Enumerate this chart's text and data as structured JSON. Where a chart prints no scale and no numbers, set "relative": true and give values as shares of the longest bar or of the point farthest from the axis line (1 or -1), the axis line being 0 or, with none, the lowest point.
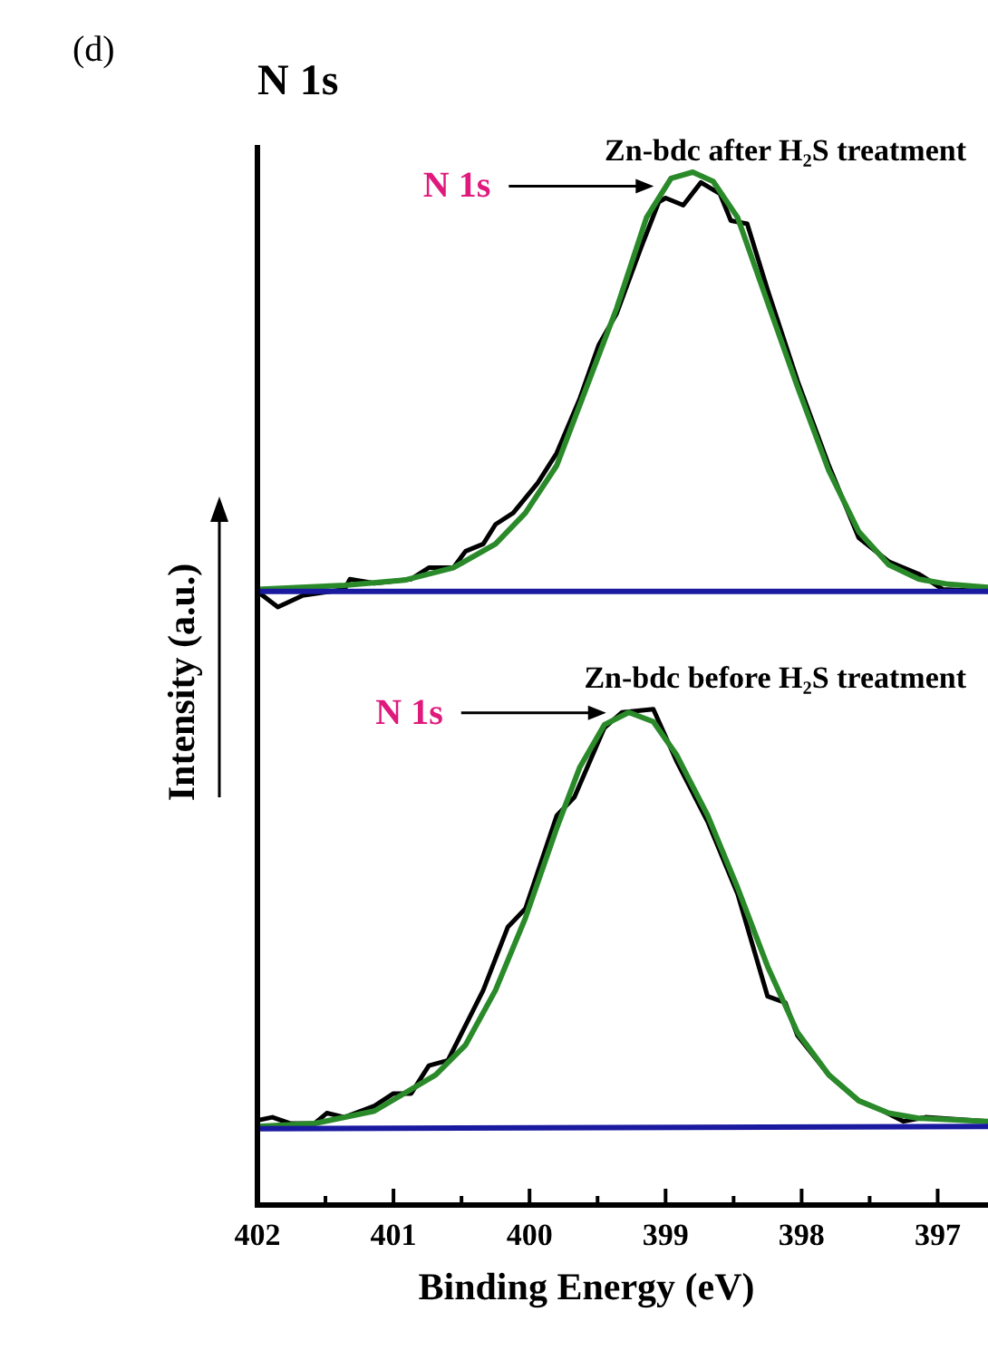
{
  "chart_data": {
    "type": "line",
    "title": "N 1s",
    "xlabel": "Binding Energy (eV)",
    "ylabel": "Intensity (a.u.)",
    "relative": true,
    "xlim": [
      402,
      396.63
    ],
    "xticks": [
      402,
      {
        "value": 401.5,
        "label": null
      },
      401,
      {
        "value": 400.5,
        "label": null
      },
      400,
      {
        "value": 399.5,
        "label": null
      },
      399,
      {
        "value": 398.5,
        "label": null
      },
      398,
      {
        "value": 397.5,
        "label": null
      },
      397
    ],
    "tick_labels": "x",
    "grid": false,
    "legend": false,
    "marker": "none",
    "line_style": "solid",
    "annotations": [
      "(d)",
      "N 1s",
      "N 1s"
    ],
    "series": [
      {
        "name": "Zn-bdc after H₂S treatment",
        "color": "#000000",
        "x": [
          402.0,
          401.85,
          401.67,
          401.36,
          401.32,
          401.14,
          400.87,
          400.74,
          400.56,
          400.47,
          400.34,
          400.25,
          400.12,
          399.94,
          399.8,
          399.63,
          399.49,
          399.36,
          399.18,
          399.05,
          399.0,
          398.87,
          398.74,
          398.6,
          398.52,
          398.4,
          398.25,
          398.03,
          397.8,
          397.58,
          397.36,
          397.14,
          396.96,
          396.63
        ],
        "values": [
          0.594,
          0.579,
          0.59,
          0.596,
          0.606,
          0.602,
          0.606,
          0.617,
          0.617,
          0.633,
          0.64,
          0.659,
          0.67,
          0.699,
          0.728,
          0.781,
          0.833,
          0.863,
          0.927,
          0.971,
          0.975,
          0.968,
          0.99,
          0.979,
          0.953,
          0.95,
          0.886,
          0.798,
          0.716,
          0.646,
          0.623,
          0.611,
          0.596,
          0.594
        ]
      },
      {
        "color": "#2a8a2a",
        "x": [
          402.0,
          401.36,
          400.92,
          400.56,
          400.25,
          400.03,
          399.8,
          399.58,
          399.36,
          399.14,
          398.96,
          398.8,
          398.65,
          398.47,
          398.25,
          398.03,
          397.8,
          397.58,
          397.36,
          397.14,
          396.92,
          396.63
        ],
        "values": [
          0.596,
          0.6,
          0.605,
          0.617,
          0.64,
          0.67,
          0.716,
          0.792,
          0.868,
          0.956,
          0.994,
          1.0,
          0.991,
          0.956,
          0.874,
          0.792,
          0.711,
          0.652,
          0.62,
          0.606,
          0.601,
          0.598
        ]
      },
      {
        "color": "#1a1aa0",
        "x": [
          402.0,
          396.63
        ],
        "values": [
          0.594,
          0.594
        ]
      },
      {
        "name": "Zn-bdc before H₂S treatment",
        "color": "#000000",
        "x": [
          402.0,
          401.89,
          401.76,
          401.58,
          401.49,
          401.36,
          401.14,
          401.0,
          400.87,
          400.74,
          400.6,
          400.34,
          400.16,
          400.03,
          399.8,
          399.67,
          399.45,
          399.32,
          399.09,
          398.92,
          398.69,
          398.47,
          398.25,
          398.12,
          398.03,
          397.8,
          397.58,
          397.4,
          397.25,
          397.09,
          396.63
        ],
        "values": [
          0.082,
          0.085,
          0.079,
          0.079,
          0.089,
          0.085,
          0.096,
          0.108,
          0.108,
          0.135,
          0.14,
          0.208,
          0.269,
          0.287,
          0.377,
          0.395,
          0.462,
          0.477,
          0.48,
          0.43,
          0.371,
          0.301,
          0.202,
          0.196,
          0.164,
          0.126,
          0.101,
          0.091,
          0.081,
          0.085,
          0.081
        ]
      },
      {
        "color": "#2a8a2a",
        "x": [
          402.0,
          401.58,
          401.14,
          400.69,
          400.47,
          400.25,
          400.03,
          399.8,
          399.63,
          399.45,
          399.27,
          399.09,
          398.92,
          398.69,
          398.47,
          398.25,
          398.03,
          397.8,
          397.58,
          397.36,
          397.14,
          396.63
        ],
        "values": [
          0.076,
          0.079,
          0.091,
          0.126,
          0.155,
          0.208,
          0.278,
          0.365,
          0.424,
          0.465,
          0.477,
          0.468,
          0.436,
          0.377,
          0.307,
          0.231,
          0.167,
          0.126,
          0.101,
          0.089,
          0.084,
          0.081
        ]
      },
      {
        "color": "#1a1aa0",
        "x": [
          402.0,
          396.63
        ],
        "values": [
          0.074,
          0.076
        ]
      }
    ]
  }
}
